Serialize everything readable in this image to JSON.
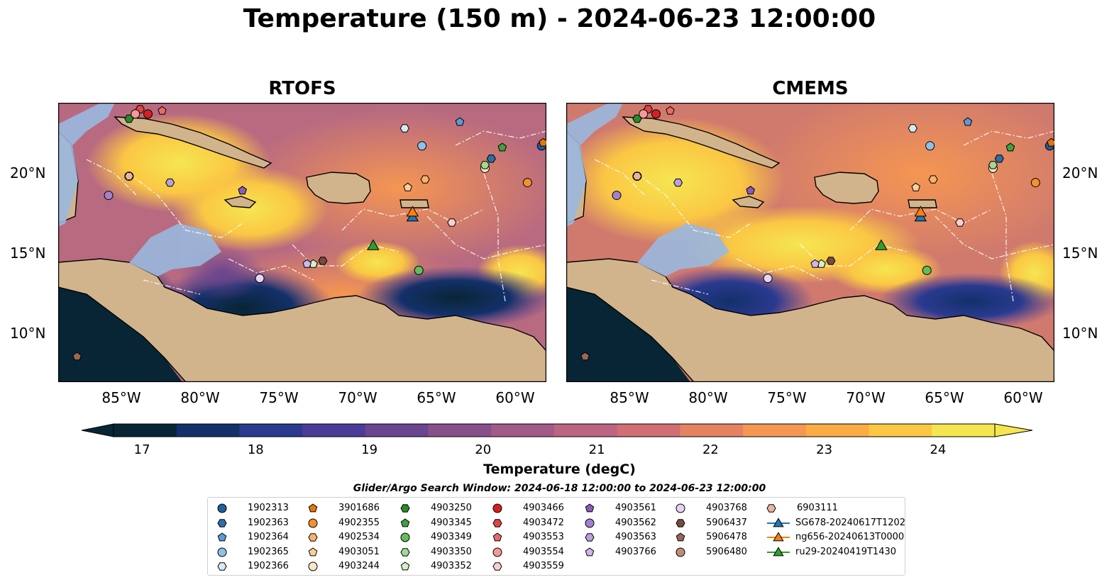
{
  "title": "Temperature (150 m) - 2024-06-23 12:00:00",
  "panels": [
    {
      "title": "RTOFS"
    },
    {
      "title": "CMEMS"
    }
  ],
  "axes": {
    "lat_ticks": [
      "20°N",
      "15°N",
      "10°N"
    ],
    "lon_ticks": [
      "85°W",
      "80°W",
      "75°W",
      "70°W",
      "65°W",
      "60°W"
    ]
  },
  "colorbar": {
    "label": "Temperature (degC)",
    "ticks": [
      "17",
      "18",
      "19",
      "20",
      "21",
      "22",
      "23",
      "24"
    ],
    "range": [
      16.75,
      24.5
    ],
    "colors": [
      "#082535",
      "#13306a",
      "#2a3a8f",
      "#4b3c98",
      "#6a4590",
      "#88508a",
      "#a25b86",
      "#bb6582",
      "#d06f74",
      "#e48262",
      "#f59652",
      "#fbac43",
      "#fbc744",
      "#f5e651"
    ]
  },
  "search_window": "Glider/Argo Search Window: 2024-06-18 12:00:00 to 2024-06-23 12:00:00",
  "legend": [
    {
      "label": "1902313",
      "marker": "circle",
      "color": "#1f5f9a"
    },
    {
      "label": "1902363",
      "marker": "hexagon",
      "color": "#2c6ea8"
    },
    {
      "label": "1902364",
      "marker": "pentagon",
      "color": "#5b9bd5"
    },
    {
      "label": "1902365",
      "marker": "circle",
      "color": "#8fc0e8"
    },
    {
      "label": "1902366",
      "marker": "hexagon",
      "color": "#d6eaf8"
    },
    {
      "label": "3901686",
      "marker": "pentagon",
      "color": "#e6760c"
    },
    {
      "label": "4902355",
      "marker": "circle",
      "color": "#f4902f"
    },
    {
      "label": "4902534",
      "marker": "hexagon",
      "color": "#f8b36a"
    },
    {
      "label": "4903051",
      "marker": "pentagon",
      "color": "#fbcf9a"
    },
    {
      "label": "4903244",
      "marker": "circle",
      "color": "#fde4c8"
    },
    {
      "label": "4903250",
      "marker": "hexagon",
      "color": "#2a8a2a"
    },
    {
      "label": "4903345",
      "marker": "pentagon",
      "color": "#3fa03f"
    },
    {
      "label": "4903349",
      "marker": "circle",
      "color": "#63bd5a"
    },
    {
      "label": "4903350",
      "marker": "hexagon",
      "color": "#a0d991"
    },
    {
      "label": "4903352",
      "marker": "pentagon",
      "color": "#d4f0c8"
    },
    {
      "label": "4903466",
      "marker": "circle",
      "color": "#d42020"
    },
    {
      "label": "4903472",
      "marker": "hexagon",
      "color": "#de4545"
    },
    {
      "label": "4903553",
      "marker": "pentagon",
      "color": "#ea6a6a"
    },
    {
      "label": "4903554",
      "marker": "circle",
      "color": "#f29a95"
    },
    {
      "label": "4903559",
      "marker": "hexagon",
      "color": "#fbcfcf"
    },
    {
      "label": "4903561",
      "marker": "pentagon",
      "color": "#8a5cb8"
    },
    {
      "label": "4903562",
      "marker": "circle",
      "color": "#a382cc"
    },
    {
      "label": "4903563",
      "marker": "hexagon",
      "color": "#bba0dc"
    },
    {
      "label": "4903766",
      "marker": "pentagon",
      "color": "#cdb6ea"
    },
    {
      "label": "4903768",
      "marker": "circle",
      "color": "#e6d4f4"
    },
    {
      "label": "5906437",
      "marker": "hexagon",
      "color": "#7a4a3c"
    },
    {
      "label": "5906478",
      "marker": "pentagon",
      "color": "#9a6656"
    },
    {
      "label": "5906480",
      "marker": "circle",
      "color": "#c08c78"
    },
    {
      "label": "6903111",
      "marker": "hexagon",
      "color": "#e8b4a2"
    },
    {
      "label": "SG678-20240617T1202",
      "marker": "triangle",
      "color": "#1f77b4"
    },
    {
      "label": "ng656-20240613T0000",
      "marker": "triangle",
      "color": "#ff7f0e"
    },
    {
      "label": "ru29-20240419T1430",
      "marker": "triangle",
      "color": "#2ca02c"
    }
  ],
  "map_extent": {
    "lon": [
      -89,
      -58
    ],
    "lat": [
      7,
      24.5
    ]
  },
  "floats": [
    {
      "id": "1902313",
      "lon": -58.3,
      "lat": 21.8
    },
    {
      "id": "1902363",
      "lon": -61.5,
      "lat": 21.0
    },
    {
      "id": "1902364",
      "lon": -63.5,
      "lat": 23.3
    },
    {
      "id": "1902365",
      "lon": -65.9,
      "lat": 21.8
    },
    {
      "id": "1902366",
      "lon": -67.0,
      "lat": 22.9
    },
    {
      "id": "3901686",
      "lon": -58.2,
      "lat": 22.0
    },
    {
      "id": "4902355",
      "lon": -59.2,
      "lat": 19.5
    },
    {
      "id": "4902534",
      "lon": -65.7,
      "lat": 19.7
    },
    {
      "id": "4903051",
      "lon": -66.8,
      "lat": 19.2
    },
    {
      "id": "4903244",
      "lon": -61.9,
      "lat": 20.4
    },
    {
      "id": "4903250",
      "lon": -84.5,
      "lat": 23.5
    },
    {
      "id": "4903345",
      "lon": -60.8,
      "lat": 21.7
    },
    {
      "id": "4903349",
      "lon": -66.1,
      "lat": 14.0
    },
    {
      "id": "4903350",
      "lon": -61.9,
      "lat": 20.6
    },
    {
      "id": "4903352",
      "lon": -72.8,
      "lat": 14.4
    },
    {
      "id": "4903466",
      "lon": -83.3,
      "lat": 23.8
    },
    {
      "id": "4903472",
      "lon": -83.8,
      "lat": 24.1
    },
    {
      "id": "4903553",
      "lon": -82.4,
      "lat": 24.0
    },
    {
      "id": "4903554",
      "lon": -84.1,
      "lat": 23.8
    },
    {
      "id": "4903559",
      "lon": -64.0,
      "lat": 17.0
    },
    {
      "id": "4903561",
      "lon": -77.3,
      "lat": 19.0
    },
    {
      "id": "4903562",
      "lon": -85.8,
      "lat": 18.7
    },
    {
      "id": "4903563",
      "lon": -81.9,
      "lat": 19.5
    },
    {
      "id": "4903766",
      "lon": -73.2,
      "lat": 14.4
    },
    {
      "id": "4903768",
      "lon": -76.2,
      "lat": 13.5
    },
    {
      "id": "5906437",
      "lon": -72.2,
      "lat": 14.6
    },
    {
      "id": "5906478",
      "lon": -87.8,
      "lat": 8.6
    },
    {
      "id": "5906480",
      "lon": -84.5,
      "lat": 19.9
    },
    {
      "id": "6903111",
      "lon": -84.5,
      "lat": 19.9
    }
  ],
  "gliders": [
    {
      "id": "SG678-20240617T1202",
      "lon": -66.5,
      "lat": 17.3
    },
    {
      "id": "ng656-20240613T0000",
      "lon": -66.5,
      "lat": 17.6
    },
    {
      "id": "ru29-20240419T1430",
      "lon": -69.0,
      "lat": 15.5
    }
  ]
}
